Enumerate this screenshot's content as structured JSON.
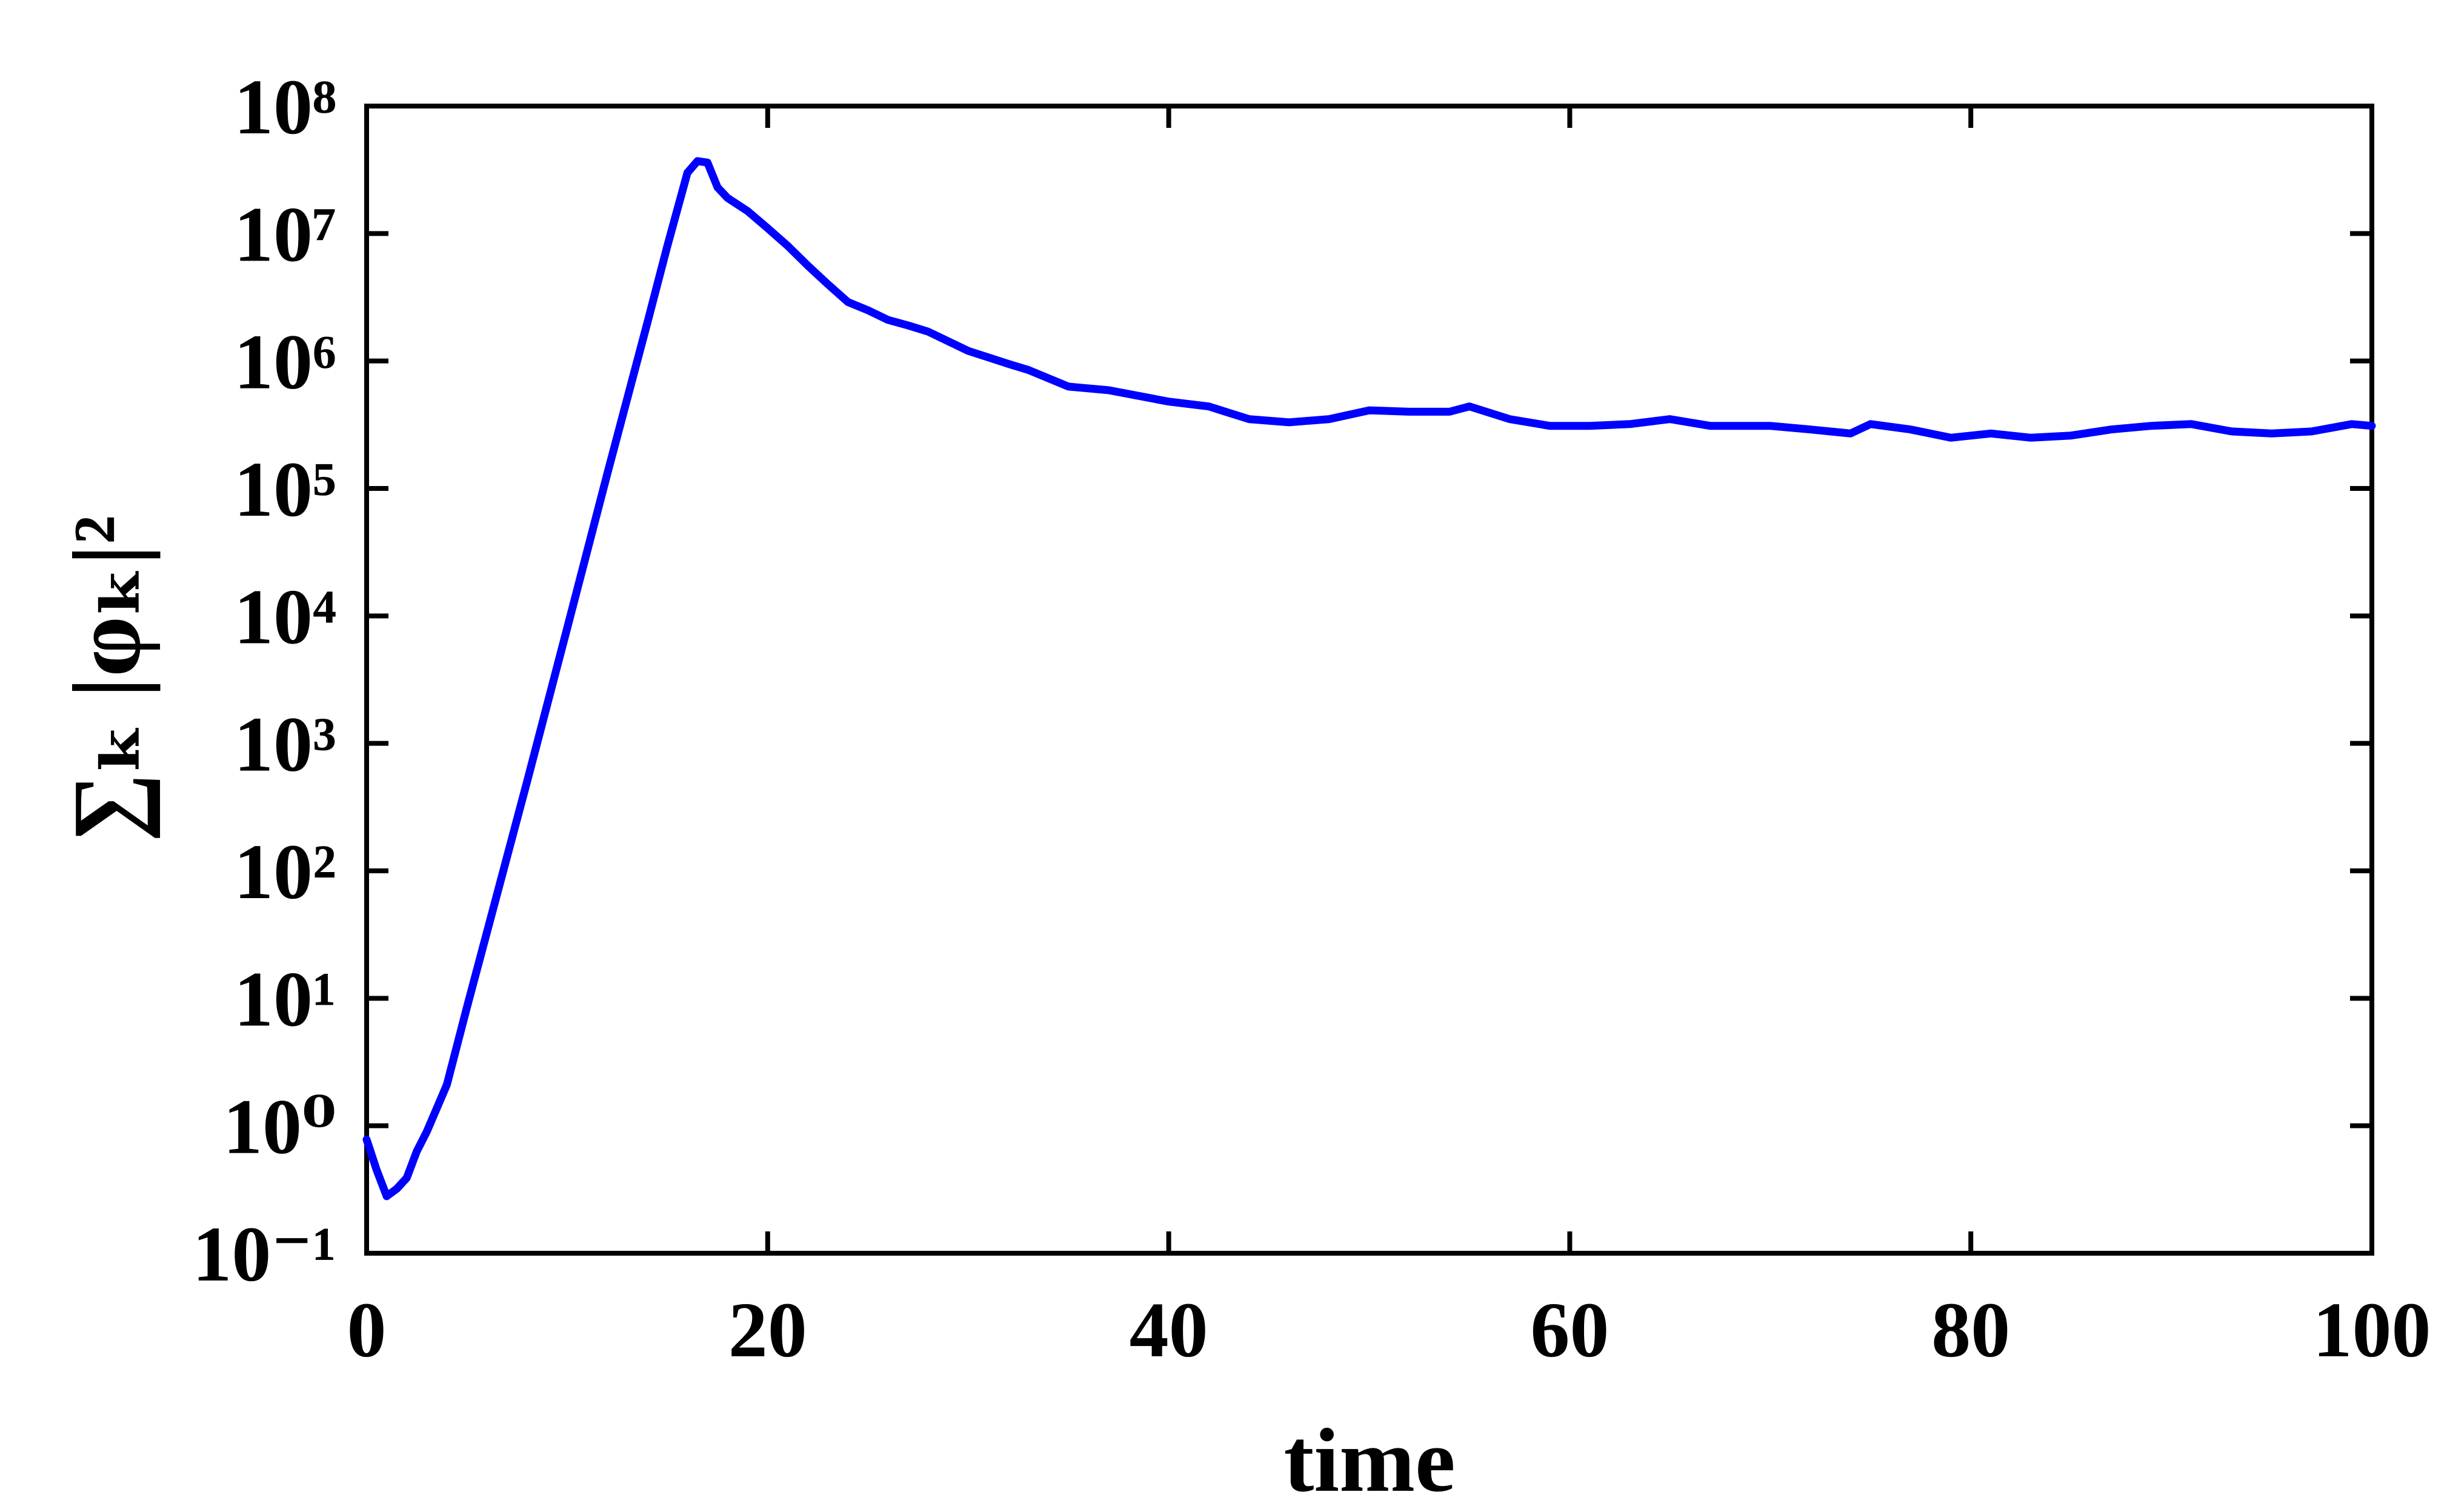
{
  "chart_data": {
    "type": "line",
    "xlabel": "time",
    "ylabel": "∑ₖ |φₖ|²",
    "yscale": "log",
    "xlim": [
      0,
      100
    ],
    "ylim": [
      0.1,
      100000000
    ],
    "xticks": [
      0,
      20,
      40,
      60,
      80,
      100
    ],
    "yticks": [
      {
        "value": 0.1,
        "label": "10⁻¹"
      },
      {
        "value": 1,
        "label": "10⁰"
      },
      {
        "value": 10,
        "label": "10¹"
      },
      {
        "value": 100,
        "label": "10²"
      },
      {
        "value": 1000,
        "label": "10³"
      },
      {
        "value": 10000,
        "label": "10⁴"
      },
      {
        "value": 100000,
        "label": "10⁵"
      },
      {
        "value": 1000000,
        "label": "10⁶"
      },
      {
        "value": 10000000,
        "label": "10⁷"
      },
      {
        "value": 100000000,
        "label": "10⁸"
      }
    ],
    "x": [
      0,
      0.5,
      1,
      1.5,
      2,
      2.5,
      3,
      4,
      5,
      8,
      10,
      12,
      14,
      15,
      16,
      16.5,
      17,
      17.5,
      18,
      19,
      20,
      21,
      22,
      23,
      24,
      25,
      26,
      27,
      28,
      30,
      32,
      33,
      35,
      37,
      40,
      42,
      44,
      46,
      48,
      50,
      52,
      54,
      55,
      57,
      59,
      61,
      63,
      65,
      67,
      70,
      72,
      74,
      75,
      77,
      79,
      81,
      83,
      85,
      87,
      89,
      91,
      93,
      95,
      97,
      99,
      100
    ],
    "series": [
      {
        "color": "#0000ff",
        "values": [
          0.78,
          0.45,
          0.28,
          0.32,
          0.39,
          0.63,
          0.9,
          2.1,
          8.5,
          500,
          8000,
          130000,
          2000000,
          8000000,
          30000000,
          37000000,
          36000000,
          23000000,
          19000000,
          15000000,
          11000000,
          8000000,
          5600000,
          4000000,
          2900000,
          2500000,
          2100000,
          1900000,
          1700000,
          1200000,
          950000,
          850000,
          630000,
          590000,
          480000,
          440000,
          350000,
          330000,
          350000,
          410000,
          400000,
          400000,
          440000,
          350000,
          310000,
          310000,
          320000,
          350000,
          310000,
          310000,
          290000,
          270000,
          320000,
          290000,
          250000,
          270000,
          250000,
          260000,
          290000,
          310000,
          320000,
          280000,
          270000,
          280000,
          320000,
          310000
        ]
      }
    ]
  }
}
